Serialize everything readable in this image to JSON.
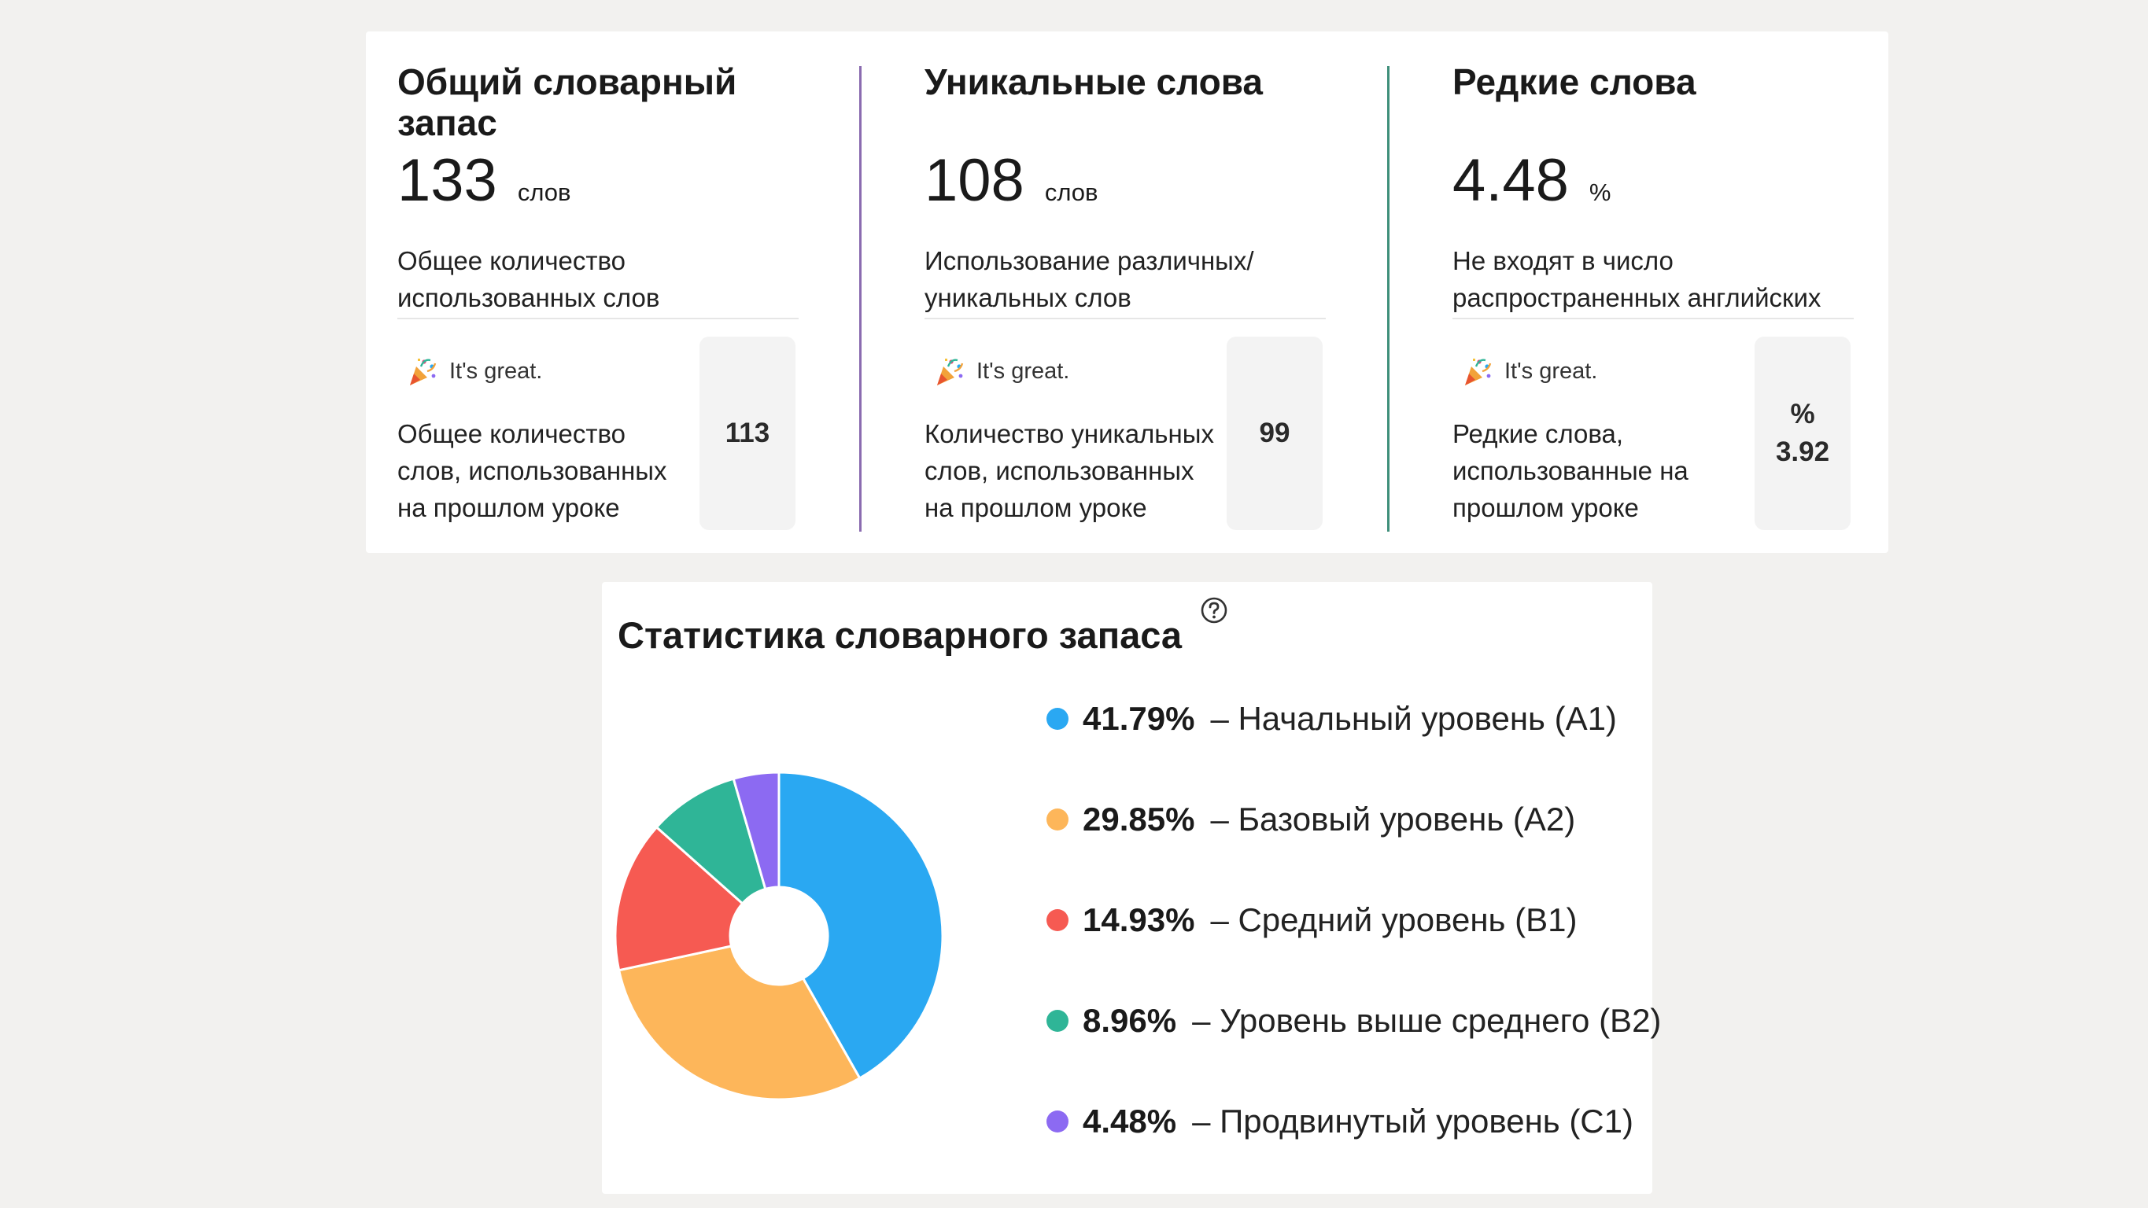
{
  "stats": [
    {
      "title": "Общий словарный запас",
      "value": "133",
      "unit": "слов",
      "description": "Общее количество использованных слов",
      "great_text": "It's great.",
      "previous_description": "Общее количество слов, использованных на прошлом уроке",
      "previous_value": "113",
      "previous_unit": "",
      "accent": "#d9d9d9"
    },
    {
      "title": "Уникальные слова",
      "value": "108",
      "unit": "слов",
      "description": "Использование различных/уникальных слов",
      "great_text": "It's great.",
      "previous_description": "Количество уникальных слов, использованных на прошлом уроке",
      "previous_value": "99",
      "previous_unit": "",
      "accent": "#8a6bb0"
    },
    {
      "title": "Редкие слова",
      "value": "4.48",
      "unit": "%",
      "description": "Не входят в число распространенных английских",
      "great_text": "It's great.",
      "previous_description": "Редкие слова, использованные на прошлом уроке",
      "previous_value": "3.92",
      "previous_unit": "%",
      "accent": "#3f8f7a"
    }
  ],
  "vocab": {
    "title": "Статистика словарного запаса",
    "help_icon": "question-circle-icon"
  },
  "chart_data": {
    "type": "pie",
    "donut": true,
    "series": [
      {
        "name": "Начальный уровень (A1)",
        "value": 41.79,
        "label": "41.79%",
        "color": "#2aa8f2"
      },
      {
        "name": "Базовый уровень (A2)",
        "value": 29.85,
        "label": "29.85%",
        "color": "#fdb65a"
      },
      {
        "name": "Средний уровень (B1)",
        "value": 14.93,
        "label": "14.93%",
        "color": "#f65a52"
      },
      {
        "name": "Уровень выше среднего (B2)",
        "value": 8.96,
        "label": "8.96%",
        "color": "#2fb597"
      },
      {
        "name": "Продвинутый уровень (C1)",
        "value": 4.48,
        "label": "4.48%",
        "color": "#8c6af2"
      }
    ],
    "legend_position": "right",
    "legend_separator": "–"
  }
}
